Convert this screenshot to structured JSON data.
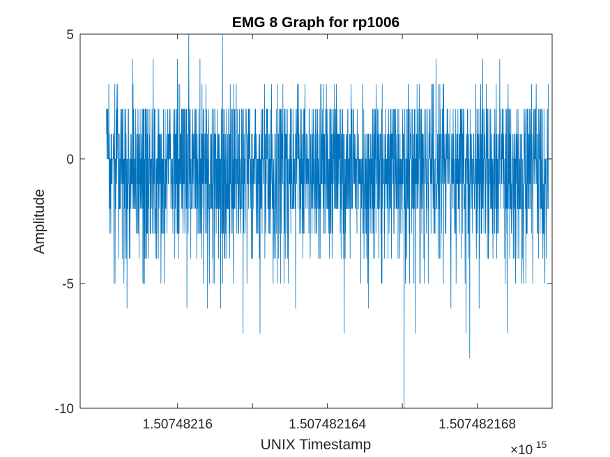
{
  "chart_data": {
    "type": "line",
    "title": "EMG 8 Graph for rp1006",
    "xlabel": "UNIX Timestamp",
    "ylabel": "Amplitude",
    "x_multiplier_base": "×10",
    "x_multiplier_exp": "15",
    "xlim": [
      1.5074821574,
      1.50748217
    ],
    "ylim": [
      -10,
      5
    ],
    "x_ticks": [
      {
        "value": 1.50748216,
        "label": "1.50748216"
      },
      {
        "value": 1.507482162,
        "label": ""
      },
      {
        "value": 1.507482164,
        "label": "1.507482164"
      },
      {
        "value": 1.507482166,
        "label": ""
      },
      {
        "value": 1.507482168,
        "label": "1.507482168"
      }
    ],
    "y_ticks": [
      {
        "value": -10,
        "label": "-10"
      },
      {
        "value": -5,
        "label": "-5"
      },
      {
        "value": 0,
        "label": "0"
      },
      {
        "value": 5,
        "label": "5"
      }
    ],
    "grid": false,
    "legend": "none",
    "line_color": "#0072bd",
    "x_start": 1.5074821581,
    "x_end": 1.5074821699,
    "sample_count": 2400,
    "baseline_values": [
      -3,
      -2,
      -2,
      -1,
      -1,
      -1,
      0,
      0,
      0,
      1,
      1,
      2
    ],
    "peak_events": [
      {
        "x": 1.5074821583,
        "y": -5
      },
      {
        "x": 1.5074821584,
        "y": 3
      },
      {
        "x": 1.50748215865,
        "y": -6
      },
      {
        "x": 1.5074821588,
        "y": 4
      },
      {
        "x": 1.5074821591,
        "y": -5
      },
      {
        "x": 1.50748215935,
        "y": 4
      },
      {
        "x": 1.50748215965,
        "y": -5
      },
      {
        "x": 1.50748216,
        "y": 4
      },
      {
        "x": 1.50748216025,
        "y": -6
      },
      {
        "x": 1.5074821603,
        "y": 5
      },
      {
        "x": 1.5074821606,
        "y": 4
      },
      {
        "x": 1.5074821608,
        "y": -6
      },
      {
        "x": 1.5074821612,
        "y": 5
      },
      {
        "x": 1.50748216115,
        "y": -6
      },
      {
        "x": 1.5074821615,
        "y": 3
      },
      {
        "x": 1.50748216175,
        "y": -7
      },
      {
        "x": 1.5074821622,
        "y": -7
      },
      {
        "x": 1.50748216315,
        "y": -6
      },
      {
        "x": 1.5074821639,
        "y": 3
      },
      {
        "x": 1.50748216445,
        "y": -7
      },
      {
        "x": 1.5074821651,
        "y": -6
      },
      {
        "x": 1.5074821653,
        "y": 3
      },
      {
        "x": 1.50748216635,
        "y": -7
      },
      {
        "x": 1.50748216605,
        "y": -10
      },
      {
        "x": 1.50748216645,
        "y": 3
      },
      {
        "x": 1.5074821669,
        "y": 4
      },
      {
        "x": 1.5074821673,
        "y": -6
      },
      {
        "x": 1.5074821677,
        "y": -7
      },
      {
        "x": 1.5074821678,
        "y": -8
      },
      {
        "x": 1.50748216805,
        "y": -6
      },
      {
        "x": 1.50748216815,
        "y": 4
      },
      {
        "x": 1.5074821686,
        "y": 4
      },
      {
        "x": 1.5074821688,
        "y": -7
      },
      {
        "x": 1.5074821693,
        "y": -5
      },
      {
        "x": 1.50748216945,
        "y": 3
      },
      {
        "x": 1.50748216975,
        "y": -4
      },
      {
        "x": 1.5074821699,
        "y": 3
      }
    ]
  }
}
